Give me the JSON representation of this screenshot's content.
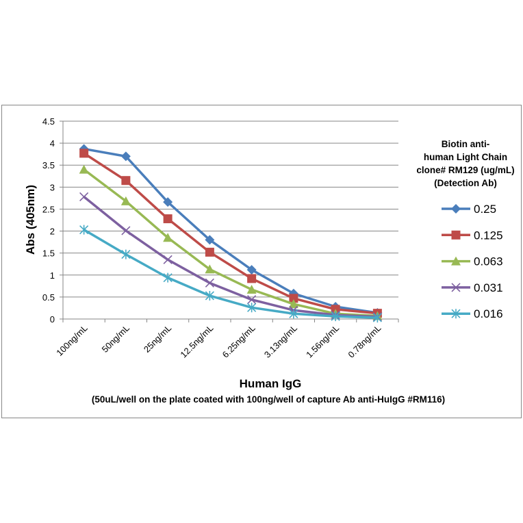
{
  "chart_data": {
    "type": "line",
    "title": "",
    "xlabel": "Human IgG",
    "xlabel_sub": "(50uL/well on the plate coated with 100ng/well of capture Ab anti-HuIgG #RM116)",
    "ylabel": "Abs (405nm)",
    "ylim": [
      0,
      4.5
    ],
    "yticks": [
      "0",
      "0.5",
      "1",
      "1.5",
      "2",
      "2.5",
      "3",
      "3.5",
      "4",
      "4.5"
    ],
    "ytick_values": [
      0,
      0.5,
      1,
      1.5,
      2,
      2.5,
      3,
      3.5,
      4,
      4.5
    ],
    "grid": true,
    "categories": [
      "100ng/mL",
      "50ng/mL",
      "25ng/mL",
      "12.5ng/mL",
      "6.25ng/mL",
      "3.13ng/mL",
      "1.56ng/mL",
      "0.78ng/mL"
    ],
    "legend_title": [
      "Biotin anti-",
      "human Light Chain",
      "clone# RM129 (ug/mL)",
      "(Detection Ab)"
    ],
    "legend_position": "right",
    "series": [
      {
        "name": "0.25",
        "color": "#4A7EBB",
        "marker": "diamond",
        "values": [
          3.87,
          3.7,
          2.66,
          1.8,
          1.12,
          0.58,
          0.28,
          0.14
        ]
      },
      {
        "name": "0.125",
        "color": "#BE4B48",
        "marker": "square",
        "values": [
          3.77,
          3.15,
          2.28,
          1.52,
          0.92,
          0.47,
          0.22,
          0.13
        ]
      },
      {
        "name": "0.063",
        "color": "#98B954",
        "marker": "triangle",
        "values": [
          3.4,
          2.68,
          1.85,
          1.13,
          0.67,
          0.34,
          0.12,
          0.07
        ]
      },
      {
        "name": "0.031",
        "color": "#7D60A0",
        "marker": "x",
        "values": [
          2.78,
          2.01,
          1.35,
          0.82,
          0.44,
          0.2,
          0.09,
          0.05
        ]
      },
      {
        "name": "0.016",
        "color": "#46AAC5",
        "marker": "star",
        "values": [
          2.03,
          1.47,
          0.94,
          0.53,
          0.26,
          0.12,
          0.06,
          0.03
        ]
      }
    ]
  }
}
